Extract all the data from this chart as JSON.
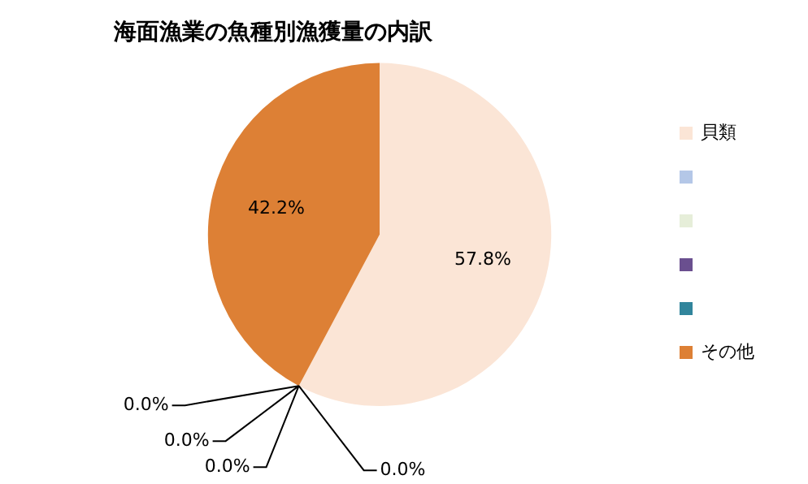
{
  "chart_data": {
    "type": "pie",
    "title": "海面漁業の魚種別漁獲量の内訳",
    "categories": [
      "貝類",
      null,
      null,
      null,
      null,
      "その他"
    ],
    "values": [
      57.8,
      0,
      0,
      0,
      0,
      42.2
    ],
    "value_labels": [
      "57.8%",
      "0.0%",
      "0.0%",
      "0.0%",
      "0.0%",
      "42.2%"
    ],
    "colors": [
      "#fbe5d6",
      "#b4c7e7",
      "#e6eed9",
      "#6a4f8f",
      "#31859c",
      "#dd8035"
    ],
    "legend": "right"
  }
}
